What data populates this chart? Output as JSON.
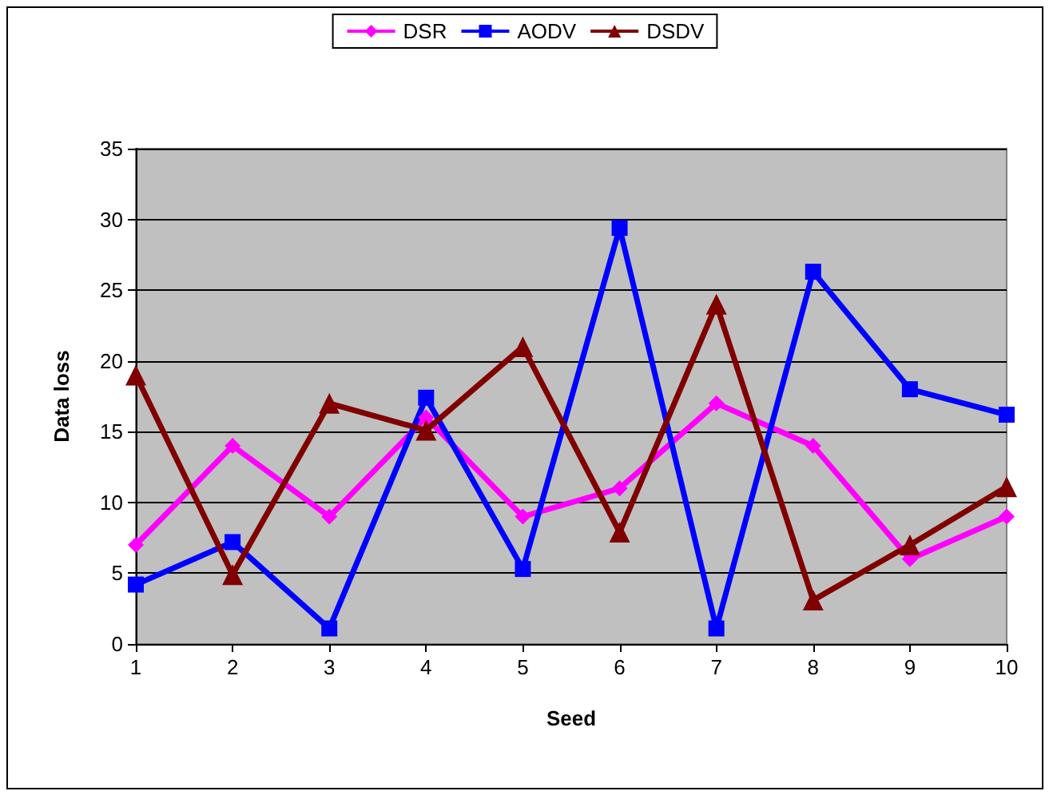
{
  "chart_data": {
    "type": "line",
    "xlabel": "Seed",
    "ylabel": "Data loss",
    "categories": [
      "1",
      "2",
      "3",
      "4",
      "5",
      "6",
      "7",
      "8",
      "9",
      "10"
    ],
    "series": [
      {
        "name": "DSR",
        "color": "#ff00ff",
        "marker": "diamond",
        "values": [
          7,
          14,
          9,
          16,
          9,
          11,
          17,
          14,
          6,
          9
        ]
      },
      {
        "name": "AODV",
        "color": "#0000ff",
        "marker": "square",
        "values": [
          4.2,
          7.2,
          1.1,
          17.4,
          5.3,
          29.4,
          1.1,
          26.3,
          18,
          16.2
        ]
      },
      {
        "name": "DSDV",
        "color": "#800000",
        "marker": "triangle",
        "values": [
          19,
          4.9,
          17,
          15.1,
          21,
          7.9,
          24,
          3.1,
          7,
          11.1
        ]
      }
    ],
    "ylim": [
      0,
      35
    ],
    "yticks": [
      0,
      5,
      10,
      15,
      20,
      25,
      30,
      35
    ],
    "grid": "y",
    "legend": "top"
  }
}
